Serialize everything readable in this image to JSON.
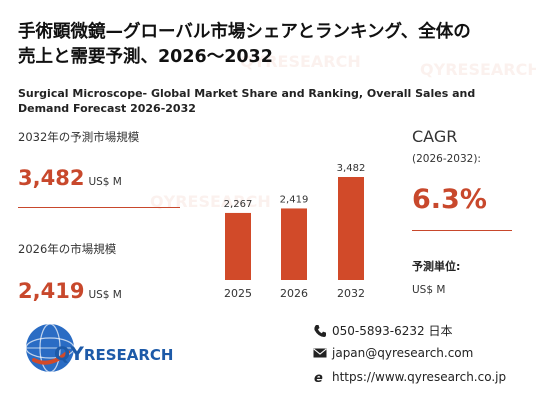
{
  "title_jp_line1": "手術顕微鏡—グローバル市場シェアとランキング、全体の",
  "title_jp_line2": "売上と需要予測、2026～2032",
  "title_en": "Surgical Microscope- Global Market Share and Ranking, Overall Sales and Demand Forecast 2026-2032",
  "forecast_block": {
    "label": "2032年の予測市場規模",
    "value": "3,482",
    "unit": "US$ M"
  },
  "current_block": {
    "label": "2026年の市場規模",
    "value": "2,419",
    "unit": "US$ M"
  },
  "cagr": {
    "label": "CAGR",
    "range": "(2026-2032):",
    "value": "6.3%"
  },
  "forecast_unit": {
    "label": "予測単位:",
    "value": "US$ M"
  },
  "contact": {
    "phone": "050-5893-6232 日本",
    "email": "japan@qyresearch.com",
    "web": "https://www.qyresearch.co.jp"
  },
  "logo": {
    "text_a": "QY",
    "text_b": "RESEARCH"
  },
  "colors": {
    "accent": "#c8482c",
    "bar": "#d14a29",
    "logo_blue": "#1d5aa8"
  },
  "chart_data": {
    "type": "bar",
    "categories": [
      "2025",
      "2026",
      "2032"
    ],
    "values": [
      2267,
      2419,
      3482
    ],
    "value_labels": [
      "2,267",
      "2,419",
      "3,482"
    ],
    "title": "",
    "xlabel": "",
    "ylabel": "",
    "ylim": [
      0,
      3482
    ],
    "grid": false,
    "legend": "none"
  }
}
